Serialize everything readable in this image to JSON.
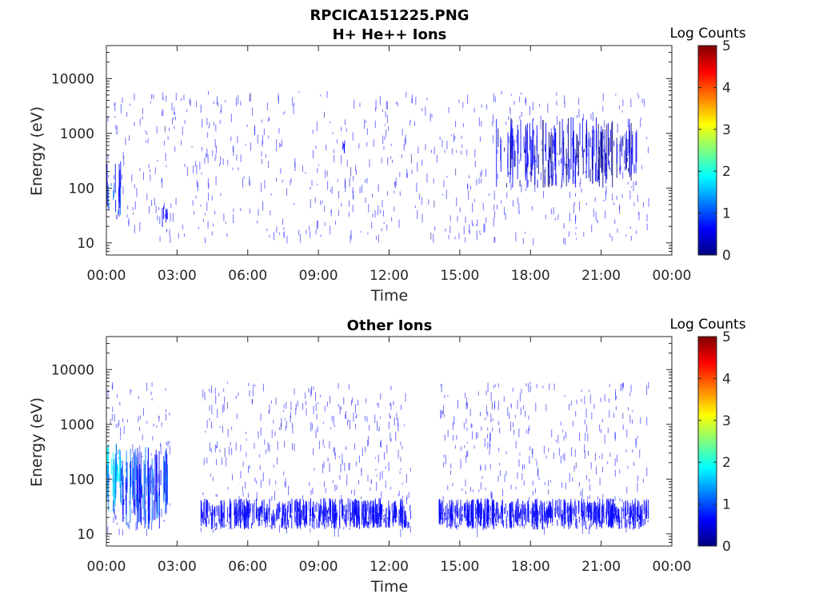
{
  "figure": {
    "title_line1": "RPCICA151225.PNG",
    "title_line2": "H+ He++ Ions"
  },
  "colors": {
    "colormap": [
      "#00007f",
      "#0000ff",
      "#007fff",
      "#00ffff",
      "#7fff7f",
      "#ffff00",
      "#ff7f00",
      "#ff0000",
      "#7f0000"
    ],
    "axis": "#262626",
    "background": "#ffffff"
  },
  "chart_data": [
    {
      "type": "heatmap",
      "title": "H+ He++ Ions",
      "xlabel": "Time",
      "ylabel": "Energy (eV)",
      "x_ticks": [
        "00:00",
        "03:00",
        "06:00",
        "09:00",
        "12:00",
        "15:00",
        "18:00",
        "21:00",
        "00:00"
      ],
      "xlim_hours": [
        0,
        24
      ],
      "y_scale": "log",
      "y_ticks": [
        "10",
        "100",
        "1000",
        "10000"
      ],
      "ylim": [
        6,
        40000
      ],
      "colorbar": {
        "label": "Log Counts",
        "ticks": [
          "0",
          "1",
          "2",
          "3",
          "4",
          "5"
        ],
        "range": [
          0,
          5
        ]
      },
      "data_extent_hours": [
        0,
        23
      ],
      "features": [
        {
          "t_start": 0.0,
          "t_end": 0.6,
          "e_low": 25,
          "e_high": 350,
          "log_counts": 1.0
        },
        {
          "t_start": 2.3,
          "t_end": 2.6,
          "e_low": 15,
          "e_high": 50,
          "log_counts": 0.5
        },
        {
          "t_start": 10.0,
          "t_end": 10.1,
          "e_low": 400,
          "e_high": 800,
          "log_counts": 0.5
        },
        {
          "t_start": 16.5,
          "t_end": 22.5,
          "e_low": 100,
          "e_high": 2000,
          "log_counts": 0.4
        }
      ]
    },
    {
      "type": "heatmap",
      "title": "Other Ions",
      "xlabel": "Time",
      "ylabel": "Energy (eV)",
      "x_ticks": [
        "00:00",
        "03:00",
        "06:00",
        "09:00",
        "12:00",
        "15:00",
        "18:00",
        "21:00",
        "00:00"
      ],
      "xlim_hours": [
        0,
        24
      ],
      "y_scale": "log",
      "y_ticks": [
        "10",
        "100",
        "1000",
        "10000"
      ],
      "ylim": [
        6,
        40000
      ],
      "colorbar": {
        "label": "Log Counts",
        "ticks": [
          "0",
          "1",
          "2",
          "3",
          "4",
          "5"
        ],
        "range": [
          0,
          5
        ]
      },
      "data_gaps_hours": [
        [
          2.7,
          4.0
        ],
        [
          12.9,
          14.1
        ]
      ],
      "data_extent_hours": [
        0,
        23
      ],
      "features": [
        {
          "t_start": 0.0,
          "t_end": 0.6,
          "e_low": 25,
          "e_high": 550,
          "log_counts": 1.8
        },
        {
          "t_start": 0.6,
          "t_end": 2.6,
          "e_low": 12,
          "e_high": 400,
          "log_counts": 1.0
        },
        {
          "t_start": 4.0,
          "t_end": 12.9,
          "e_low": 12,
          "e_high": 45,
          "log_counts": 0.7
        },
        {
          "t_start": 14.1,
          "t_end": 23.0,
          "e_low": 12,
          "e_high": 45,
          "log_counts": 0.7
        }
      ]
    }
  ]
}
